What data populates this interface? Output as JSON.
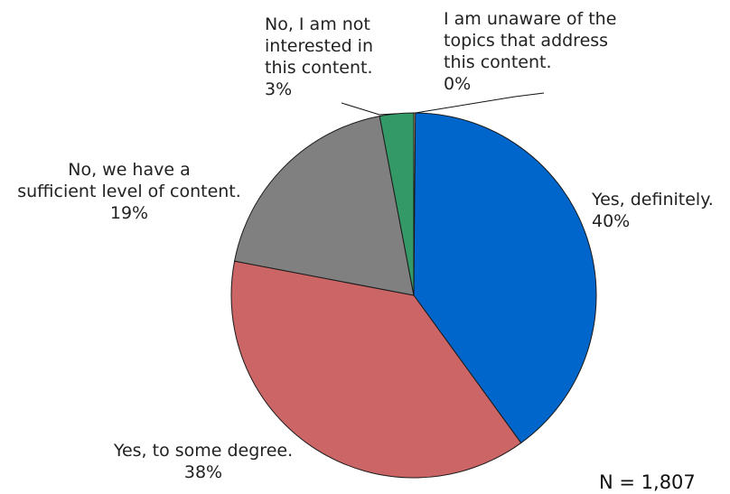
{
  "chart_data": {
    "type": "pie",
    "title": "",
    "categories": [
      "Yes, definitely.",
      "Yes, to some degree.",
      "No, we have a sufficient level of content.",
      "No, I am not interested in this content.",
      "I am unaware of the topics  that address this content."
    ],
    "values": [
      40,
      38,
      19,
      3,
      0
    ],
    "value_labels": [
      "40%",
      "38%",
      "19%",
      "3%",
      "0%"
    ],
    "label_lines": [
      [
        "Yes, definitely.",
        "40%"
      ],
      [
        "Yes, to some degree.",
        "38%"
      ],
      [
        "No, we have a",
        "sufficient level of content.",
        "19%"
      ],
      [
        "No, I am not",
        "interested in",
        "this content.",
        "3%"
      ],
      [
        "I am unaware of the",
        "topics  that address",
        "this content.",
        "0%"
      ]
    ],
    "colors": [
      "#0066cc",
      "#cc6666",
      "#808080",
      "#339966",
      "#ccb38c"
    ],
    "legend": "none",
    "note": "N = 1,807"
  }
}
